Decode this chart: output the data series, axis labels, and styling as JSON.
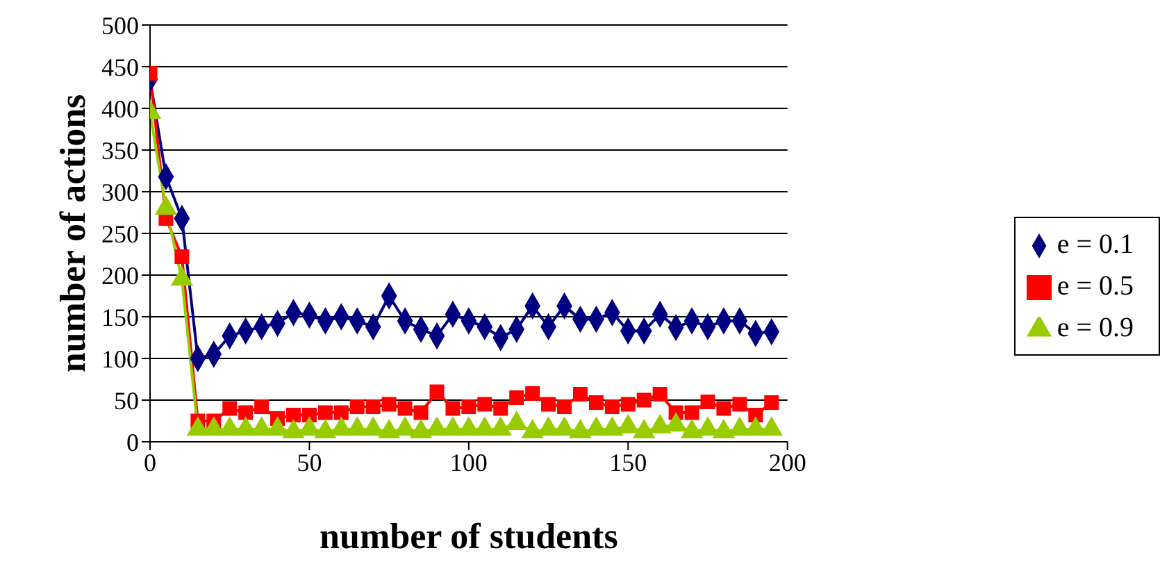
{
  "chart_data": {
    "type": "line",
    "xlabel": "number of students",
    "ylabel": "number of actions",
    "x": [
      0,
      5,
      10,
      15,
      20,
      25,
      30,
      35,
      40,
      45,
      50,
      55,
      60,
      65,
      70,
      75,
      80,
      85,
      90,
      95,
      100,
      105,
      110,
      115,
      120,
      125,
      130,
      135,
      140,
      145,
      150,
      155,
      160,
      165,
      170,
      175,
      180,
      185,
      190,
      195
    ],
    "series": [
      {
        "name": "e = 0.1",
        "color": "#000080",
        "marker": "diamond",
        "values": [
          435,
          318,
          268,
          100,
          105,
          127,
          133,
          138,
          142,
          155,
          152,
          145,
          150,
          145,
          138,
          175,
          145,
          135,
          127,
          153,
          145,
          138,
          125,
          135,
          163,
          138,
          163,
          147,
          147,
          155,
          133,
          133,
          153,
          137,
          145,
          138,
          145,
          145,
          130,
          132
        ]
      },
      {
        "name": "e = 0.5",
        "color": "#ff0000",
        "marker": "square",
        "values": [
          442,
          268,
          222,
          25,
          25,
          40,
          35,
          42,
          28,
          32,
          32,
          35,
          35,
          42,
          42,
          45,
          40,
          35,
          60,
          40,
          42,
          45,
          40,
          53,
          58,
          45,
          42,
          57,
          47,
          42,
          45,
          50,
          57,
          35,
          35,
          48,
          40,
          45,
          32,
          47
        ]
      },
      {
        "name": "e = 0.9",
        "color": "#99cc00",
        "marker": "triangle",
        "values": [
          395,
          280,
          195,
          15,
          15,
          15,
          15,
          15,
          15,
          12,
          15,
          12,
          15,
          15,
          15,
          12,
          15,
          12,
          15,
          15,
          15,
          15,
          15,
          22,
          12,
          15,
          15,
          12,
          15,
          15,
          18,
          12,
          18,
          20,
          12,
          15,
          12,
          15,
          15,
          15
        ]
      }
    ],
    "xlim": [
      0,
      200
    ],
    "xticks": [
      0,
      50,
      100,
      150,
      200
    ],
    "ylim": [
      0,
      500
    ],
    "yticks": [
      0,
      50,
      100,
      150,
      200,
      250,
      300,
      350,
      400,
      450,
      500
    ],
    "grid": "y",
    "legend": "right",
    "line_style": "solid"
  }
}
